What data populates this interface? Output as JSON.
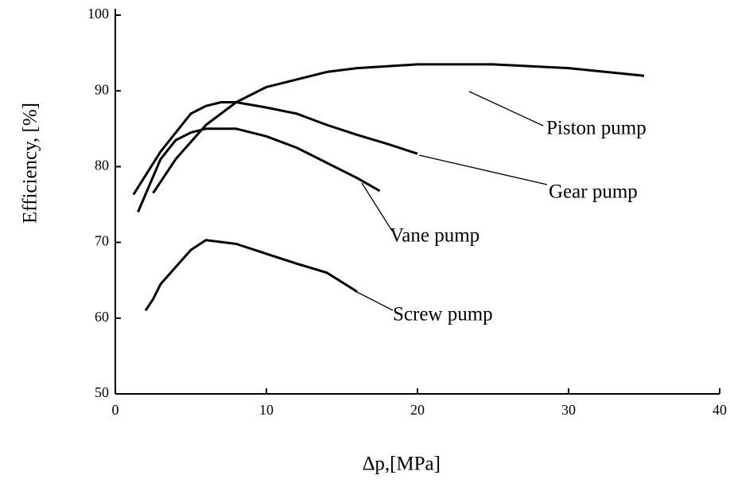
{
  "chart_data": {
    "type": "line",
    "x_label": "∆p,[MPa]",
    "y_label": "Efficiency, [%]",
    "xlim": [
      0,
      40
    ],
    "xticks": [
      0,
      10,
      20,
      30,
      40
    ],
    "ylim": [
      50,
      100
    ],
    "yticks": [
      50,
      60,
      70,
      80,
      90,
      100
    ],
    "grid": false,
    "series": [
      {
        "name": "Piston pump",
        "color": "#000000",
        "x": [
          2.5,
          4,
          6,
          8,
          10,
          12,
          14,
          16,
          20,
          25,
          30,
          35
        ],
        "values": [
          76.5,
          81,
          85.5,
          88.5,
          90.5,
          91.5,
          92.5,
          93,
          93.5,
          93.5,
          93,
          92
        ]
      },
      {
        "name": "Gear pump",
        "color": "#000000",
        "x": [
          1.2,
          3,
          5,
          6,
          7,
          8,
          10,
          12,
          14,
          16,
          18,
          20
        ],
        "values": [
          76.3,
          82,
          87,
          88,
          88.5,
          88.5,
          87.8,
          87,
          85.5,
          84.2,
          83,
          81.7
        ]
      },
      {
        "name": "Vane pump",
        "color": "#000000",
        "x": [
          1.5,
          3,
          4,
          5,
          6,
          8,
          10,
          12,
          14,
          16,
          17.5
        ],
        "values": [
          74,
          81,
          83.5,
          84.5,
          85,
          85,
          84,
          82.5,
          80.5,
          78.5,
          76.8
        ]
      },
      {
        "name": "Screw pump",
        "color": "#000000",
        "x": [
          2,
          2.5,
          3,
          5,
          6,
          8,
          10,
          12,
          14,
          16
        ],
        "values": [
          61,
          62.5,
          64.5,
          69,
          70.3,
          69.8,
          68.5,
          67.2,
          66,
          63.5
        ]
      }
    ]
  }
}
